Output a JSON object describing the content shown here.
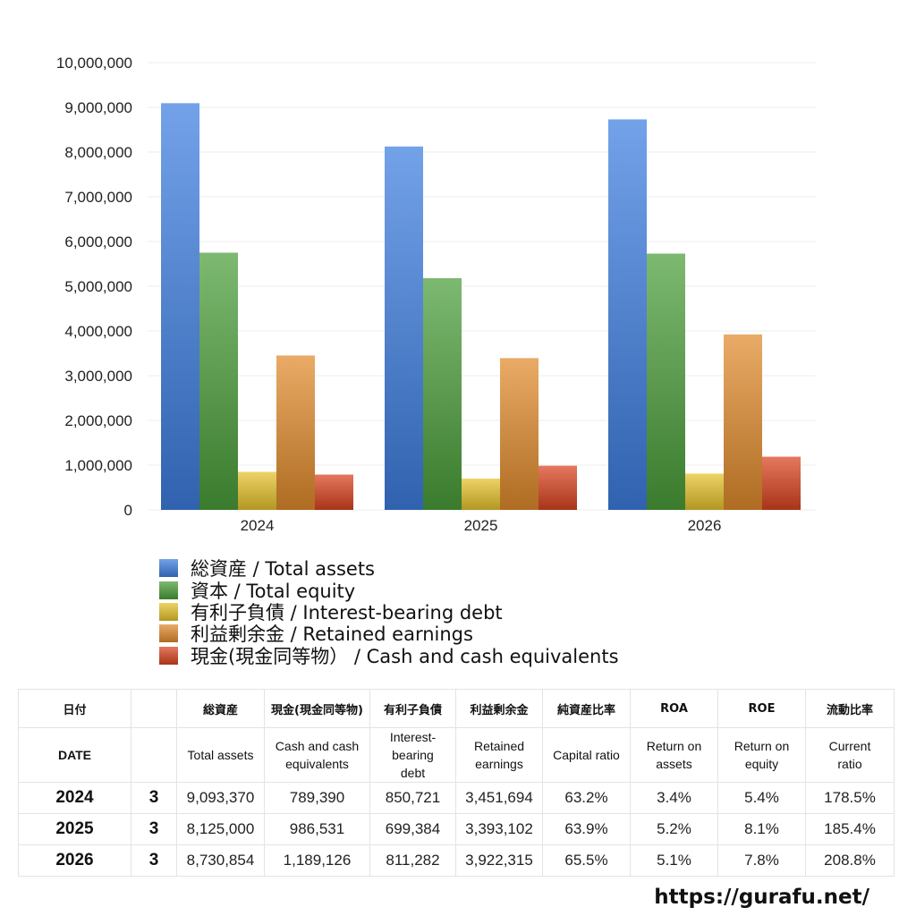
{
  "chart_data": {
    "type": "bar",
    "categories": [
      "2024",
      "2025",
      "2026"
    ],
    "series": [
      {
        "name": "総資産 / Total assets",
        "values": [
          9093370,
          8125000,
          8730854
        ],
        "color": "#3d7ee0"
      },
      {
        "name": "資本 / Total equity",
        "values": [
          5750000,
          5180000,
          5730000
        ],
        "color": "#4a9e3a"
      },
      {
        "name": "有利子負債 / Interest-bearing debt",
        "values": [
          850721,
          699384,
          811282
        ],
        "color": "#e6c22c"
      },
      {
        "name": "利益剰余金 / Retained earnings",
        "values": [
          3451694,
          3393102,
          3922315
        ],
        "color": "#e08a2c"
      },
      {
        "name": "現金(現金同等物）  /  Cash and cash equivalents",
        "values": [
          789390,
          986531,
          1189126
        ],
        "color": "#d9431f"
      }
    ],
    "yticks": [
      "0",
      "1,000,000",
      "2,000,000",
      "3,000,000",
      "4,000,000",
      "5,000,000",
      "6,000,000",
      "7,000,000",
      "8,000,000",
      "9,000,000",
      "10,000,000"
    ],
    "ylim": [
      0,
      10000000
    ],
    "grid": true,
    "legend_position": "bottom"
  },
  "table": {
    "header_jp": [
      "日付",
      "",
      "総資産",
      "現金(現金同等物)",
      "有利子負債",
      "利益剰余金",
      "純資産比率",
      "ROA",
      "ROE",
      "流動比率"
    ],
    "header_en": [
      "DATE",
      "",
      "Total assets",
      "Cash and cash equivalents",
      "Interest-bearing debt",
      "Retained earnings",
      "Capital ratio",
      "Return on assets",
      "Return on equity",
      "Current ratio"
    ],
    "rows": [
      [
        "2024",
        "3",
        "9,093,370",
        "789,390",
        "850,721",
        "3,451,694",
        "63.2%",
        "3.4%",
        "5.4%",
        "178.5%"
      ],
      [
        "2025",
        "3",
        "8,125,000",
        "986,531",
        "699,384",
        "3,393,102",
        "63.9%",
        "5.2%",
        "8.1%",
        "185.4%"
      ],
      [
        "2026",
        "3",
        "8,730,854",
        "1,189,126",
        "811,282",
        "3,922,315",
        "65.5%",
        "5.1%",
        "7.8%",
        "208.8%"
      ]
    ]
  },
  "site_url": "https://gurafu.net/"
}
